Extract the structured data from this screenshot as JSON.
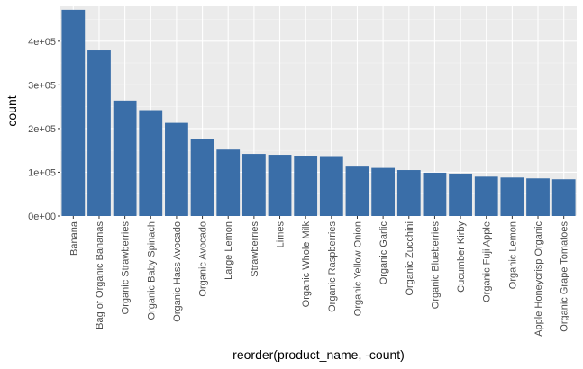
{
  "chart_data": {
    "type": "bar",
    "xlabel": "reorder(product_name, -count)",
    "ylabel": "count",
    "ylim": [
      0,
      480000
    ],
    "yticks": [
      0,
      100000,
      200000,
      300000,
      400000
    ],
    "ytick_labels": [
      "0e+00",
      "1e+05",
      "2e+05",
      "3e+05",
      "4e+05"
    ],
    "grid": true,
    "categories": [
      "Banana",
      "Bag of Organic Bananas",
      "Organic Strawberries",
      "Organic Baby Spinach",
      "Organic Hass Avocado",
      "Organic Avocado",
      "Large Lemon",
      "Strawberries",
      "Limes",
      "Organic Whole Milk",
      "Organic Raspberries",
      "Organic Yellow Onion",
      "Organic Garlic",
      "Organic Zucchini",
      "Organic Blueberries",
      "Cucumber Kirby",
      "Organic Fuji Apple",
      "Organic Lemon",
      "Apple Honeycrisp Organic",
      "Organic Grape Tomatoes"
    ],
    "values": [
      472000,
      379000,
      264000,
      242000,
      213000,
      176000,
      152000,
      142000,
      140000,
      138000,
      137000,
      113000,
      110000,
      105000,
      99000,
      97000,
      90000,
      88000,
      86000,
      84000
    ]
  },
  "colors": {
    "bar": "#3a6ea8",
    "panel": "#ebebeb",
    "grid_major": "#ffffff",
    "grid_minor": "#f5f5f5",
    "tick_text": "#4d4d4d",
    "title_text": "#000000"
  }
}
